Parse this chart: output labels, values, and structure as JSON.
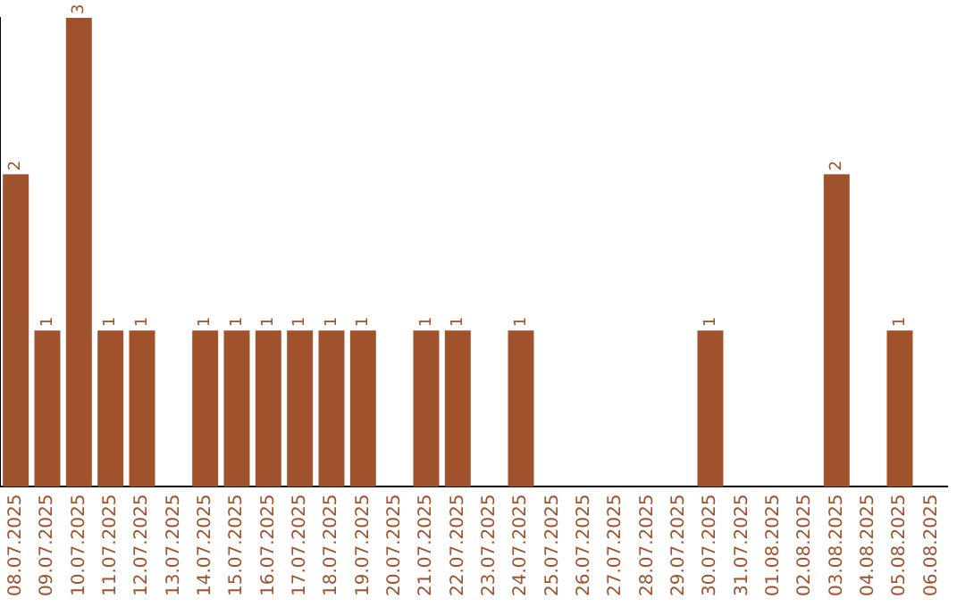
{
  "chart_data": {
    "type": "bar",
    "categories": [
      "08.07.2025",
      "09.07.2025",
      "10.07.2025",
      "11.07.2025",
      "12.07.2025",
      "13.07.2025",
      "14.07.2025",
      "15.07.2025",
      "16.07.2025",
      "17.07.2025",
      "18.07.2025",
      "19.07.2025",
      "20.07.2025",
      "21.07.2025",
      "22.07.2025",
      "23.07.2025",
      "24.07.2025",
      "25.07.2025",
      "26.07.2025",
      "27.07.2025",
      "28.07.2025",
      "29.07.2025",
      "30.07.2025",
      "31.07.2025",
      "01.08.2025",
      "02.08.2025",
      "03.08.2025",
      "04.08.2025",
      "05.08.2025",
      "06.08.2025"
    ],
    "values": [
      2,
      1,
      3,
      1,
      1,
      0,
      1,
      1,
      1,
      1,
      1,
      1,
      0,
      1,
      1,
      0,
      1,
      0,
      0,
      0,
      0,
      0,
      1,
      0,
      0,
      0,
      2,
      0,
      1,
      0
    ],
    "value_labels": [
      "2",
      "1",
      "3",
      "1",
      "1",
      null,
      "1",
      "1",
      "1",
      "1",
      "1",
      "1",
      null,
      "1",
      "1",
      null,
      "1",
      null,
      null,
      null,
      null,
      null,
      "1",
      null,
      null,
      null,
      "2",
      null,
      "1",
      null
    ],
    "color": "#a0522d",
    "grid": false,
    "legend": false,
    "tick_labels": "x"
  }
}
